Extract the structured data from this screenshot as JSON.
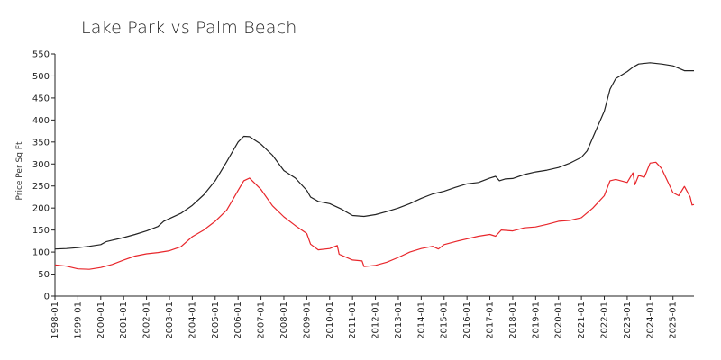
{
  "chart_data": {
    "type": "line",
    "title": "Lake Park vs Palm Beach",
    "xlabel": "",
    "ylabel": "Price Per Sq Ft",
    "ylim": [
      0,
      550
    ],
    "yticks": [
      0,
      50,
      100,
      150,
      200,
      250,
      300,
      350,
      400,
      450,
      500,
      550
    ],
    "xticks": [
      "1998-01",
      "1999-01",
      "2000-01",
      "2001-01",
      "2002-01",
      "2003-01",
      "2004-01",
      "2005-01",
      "2006-01",
      "2007-01",
      "2008-01",
      "2009-01",
      "2010-01",
      "2011-01",
      "2012-01",
      "2013-01",
      "2014-01",
      "2015-01",
      "2016-01",
      "2017-01",
      "2018-01",
      "2019-01",
      "2020-01",
      "2021-01",
      "2022-01",
      "2023-01",
      "2024-01",
      "2025-01"
    ],
    "x_range": [
      "1998-01",
      "2025-12"
    ],
    "grid": false,
    "legend": "none",
    "colors": {
      "series_1": "#222222",
      "series_2": "#e8262b"
    },
    "series": [
      {
        "points": [
          [
            "1998-01",
            107
          ],
          [
            "1998-07",
            108
          ],
          [
            "1999-01",
            110
          ],
          [
            "1999-07",
            113
          ],
          [
            "2000-01",
            117
          ],
          [
            "2000-04",
            124
          ],
          [
            "2000-07",
            127
          ],
          [
            "2001-01",
            133
          ],
          [
            "2001-07",
            140
          ],
          [
            "2002-01",
            148
          ],
          [
            "2002-07",
            158
          ],
          [
            "2002-10",
            170
          ],
          [
            "2003-01",
            176
          ],
          [
            "2003-07",
            188
          ],
          [
            "2004-01",
            206
          ],
          [
            "2004-07",
            230
          ],
          [
            "2005-01",
            262
          ],
          [
            "2005-07",
            305
          ],
          [
            "2006-01",
            350
          ],
          [
            "2006-04",
            363
          ],
          [
            "2006-07",
            362
          ],
          [
            "2007-01",
            345
          ],
          [
            "2007-07",
            320
          ],
          [
            "2008-01",
            285
          ],
          [
            "2008-07",
            268
          ],
          [
            "2009-01",
            240
          ],
          [
            "2009-03",
            225
          ],
          [
            "2009-07",
            215
          ],
          [
            "2010-01",
            210
          ],
          [
            "2010-07",
            198
          ],
          [
            "2011-01",
            183
          ],
          [
            "2011-07",
            181
          ],
          [
            "2012-01",
            185
          ],
          [
            "2012-07",
            192
          ],
          [
            "2013-01",
            200
          ],
          [
            "2013-07",
            210
          ],
          [
            "2014-01",
            222
          ],
          [
            "2014-07",
            232
          ],
          [
            "2015-01",
            238
          ],
          [
            "2015-07",
            247
          ],
          [
            "2016-01",
            255
          ],
          [
            "2016-07",
            258
          ],
          [
            "2017-01",
            268
          ],
          [
            "2017-04",
            272
          ],
          [
            "2017-06",
            262
          ],
          [
            "2017-09",
            266
          ],
          [
            "2018-01",
            267
          ],
          [
            "2018-07",
            276
          ],
          [
            "2019-01",
            282
          ],
          [
            "2019-07",
            286
          ],
          [
            "2020-01",
            292
          ],
          [
            "2020-07",
            302
          ],
          [
            "2021-01",
            315
          ],
          [
            "2021-04",
            330
          ],
          [
            "2021-07",
            360
          ],
          [
            "2022-01",
            420
          ],
          [
            "2022-04",
            470
          ],
          [
            "2022-07",
            494
          ],
          [
            "2023-01",
            510
          ],
          [
            "2023-04",
            520
          ],
          [
            "2023-07",
            527
          ],
          [
            "2024-01",
            530
          ],
          [
            "2024-07",
            527
          ],
          [
            "2025-01",
            523
          ],
          [
            "2025-07",
            512
          ],
          [
            "2025-12",
            512
          ]
        ]
      },
      {
        "points": [
          [
            "1998-01",
            71
          ],
          [
            "1998-07",
            68
          ],
          [
            "1999-01",
            62
          ],
          [
            "1999-07",
            61
          ],
          [
            "2000-01",
            65
          ],
          [
            "2000-07",
            72
          ],
          [
            "2001-01",
            82
          ],
          [
            "2001-07",
            91
          ],
          [
            "2002-01",
            96
          ],
          [
            "2002-07",
            99
          ],
          [
            "2003-01",
            103
          ],
          [
            "2003-07",
            112
          ],
          [
            "2004-01",
            135
          ],
          [
            "2004-07",
            150
          ],
          [
            "2005-01",
            170
          ],
          [
            "2005-07",
            195
          ],
          [
            "2006-01",
            240
          ],
          [
            "2006-04",
            262
          ],
          [
            "2006-07",
            268
          ],
          [
            "2007-01",
            242
          ],
          [
            "2007-07",
            205
          ],
          [
            "2008-01",
            180
          ],
          [
            "2008-07",
            160
          ],
          [
            "2009-01",
            142
          ],
          [
            "2009-03",
            118
          ],
          [
            "2009-07",
            105
          ],
          [
            "2010-01",
            108
          ],
          [
            "2010-05",
            115
          ],
          [
            "2010-06",
            95
          ],
          [
            "2011-01",
            82
          ],
          [
            "2011-06",
            80
          ],
          [
            "2011-07",
            67
          ],
          [
            "2012-01",
            70
          ],
          [
            "2012-07",
            77
          ],
          [
            "2013-01",
            88
          ],
          [
            "2013-07",
            100
          ],
          [
            "2014-01",
            108
          ],
          [
            "2014-07",
            113
          ],
          [
            "2014-10",
            107
          ],
          [
            "2015-01",
            117
          ],
          [
            "2015-07",
            124
          ],
          [
            "2016-01",
            130
          ],
          [
            "2016-07",
            136
          ],
          [
            "2017-01",
            140
          ],
          [
            "2017-04",
            136
          ],
          [
            "2017-07",
            150
          ],
          [
            "2018-01",
            148
          ],
          [
            "2018-07",
            155
          ],
          [
            "2019-01",
            157
          ],
          [
            "2019-07",
            163
          ],
          [
            "2020-01",
            170
          ],
          [
            "2020-07",
            172
          ],
          [
            "2021-01",
            178
          ],
          [
            "2021-07",
            200
          ],
          [
            "2022-01",
            228
          ],
          [
            "2022-04",
            262
          ],
          [
            "2022-07",
            265
          ],
          [
            "2023-01",
            258
          ],
          [
            "2023-04",
            280
          ],
          [
            "2023-05",
            253
          ],
          [
            "2023-07",
            274
          ],
          [
            "2023-10",
            270
          ],
          [
            "2024-01",
            302
          ],
          [
            "2024-04",
            304
          ],
          [
            "2024-07",
            290
          ],
          [
            "2025-01",
            235
          ],
          [
            "2025-04",
            228
          ],
          [
            "2025-07",
            249
          ],
          [
            "2025-10",
            225
          ],
          [
            "2025-11",
            207
          ],
          [
            "2025-12",
            208
          ]
        ]
      }
    ]
  }
}
